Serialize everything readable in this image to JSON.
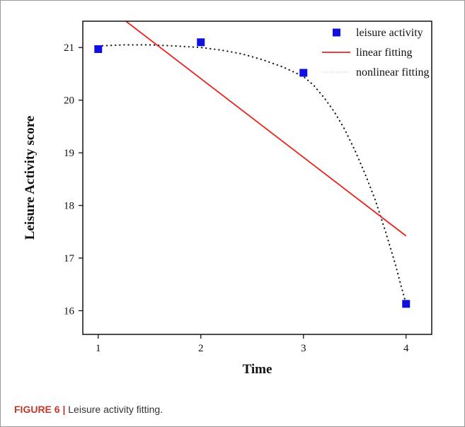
{
  "caption": {
    "label": "FIGURE 6 |",
    "text": "Leisure activity fitting."
  },
  "colors": {
    "marker": "#1010e0",
    "linear": "#e8241c",
    "nonlinear": "#111111"
  },
  "chart_data": {
    "type": "scatter",
    "title": "",
    "xlabel": "Time",
    "ylabel": "Leisure Activity score",
    "xlim": [
      0.85,
      4.25
    ],
    "ylim": [
      15.55,
      21.5
    ],
    "xticks": [
      1,
      2,
      3,
      4
    ],
    "yticks": [
      16,
      17,
      18,
      19,
      20,
      21
    ],
    "grid": false,
    "legend_position": "top-right",
    "series": [
      {
        "name": "leisure activity",
        "kind": "markers",
        "x": [
          1,
          2,
          3,
          4
        ],
        "y": [
          20.97,
          21.1,
          20.52,
          16.13
        ]
      },
      {
        "name": "linear fitting",
        "kind": "line",
        "x": [
          1.27,
          4
        ],
        "y": [
          21.5,
          17.42
        ]
      },
      {
        "name": "nonlinear fitting",
        "kind": "dotted-curve",
        "x": [
          1.0,
          1.25,
          1.5,
          1.75,
          2.0,
          2.2,
          2.4,
          2.6,
          2.8,
          3.0,
          3.1,
          3.2,
          3.3,
          3.4,
          3.5,
          3.6,
          3.7,
          3.8,
          3.9,
          3.95,
          4.0
        ],
        "y": [
          21.03,
          21.05,
          21.05,
          21.03,
          21.0,
          20.95,
          20.88,
          20.77,
          20.63,
          20.45,
          20.28,
          20.05,
          19.78,
          19.45,
          19.05,
          18.6,
          18.1,
          17.5,
          16.85,
          16.48,
          16.13
        ]
      }
    ]
  }
}
